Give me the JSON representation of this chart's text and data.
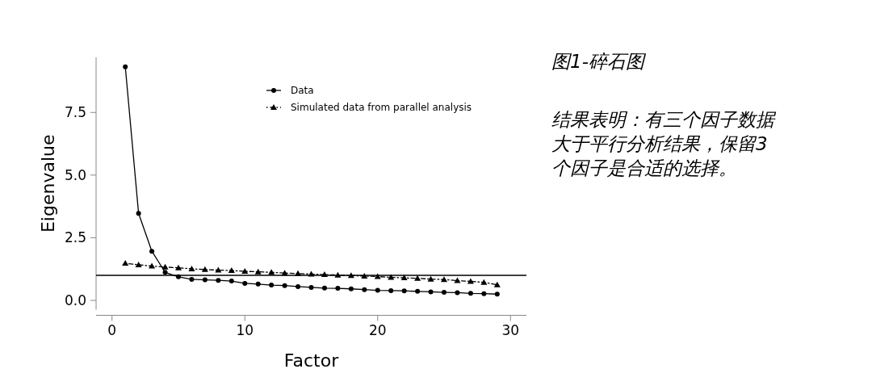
{
  "chart_data": {
    "type": "line",
    "title": "图1-碎石图",
    "xlabel": "Factor",
    "ylabel": "Eigenvalue",
    "x": [
      1,
      2,
      3,
      4,
      5,
      6,
      7,
      8,
      9,
      10,
      11,
      12,
      13,
      14,
      15,
      16,
      17,
      18,
      19,
      20,
      21,
      22,
      23,
      24,
      25,
      26,
      27,
      28,
      29
    ],
    "series": [
      {
        "name": "Data",
        "color": "#000000",
        "marker": "circle",
        "line_style": "solid",
        "values": [
          9.32,
          3.47,
          1.96,
          1.12,
          0.94,
          0.84,
          0.82,
          0.8,
          0.77,
          0.68,
          0.65,
          0.61,
          0.59,
          0.55,
          0.52,
          0.49,
          0.48,
          0.46,
          0.43,
          0.4,
          0.39,
          0.38,
          0.36,
          0.34,
          0.32,
          0.31,
          0.28,
          0.27,
          0.25
        ]
      },
      {
        "name": "Simulated data from parallel analysis",
        "color": "#000000",
        "marker": "triangle",
        "line_style": "dashdot",
        "values": [
          1.48,
          1.42,
          1.37,
          1.33,
          1.3,
          1.26,
          1.23,
          1.21,
          1.19,
          1.16,
          1.14,
          1.12,
          1.09,
          1.07,
          1.05,
          1.03,
          1.01,
          0.99,
          0.97,
          0.95,
          0.92,
          0.9,
          0.88,
          0.85,
          0.83,
          0.79,
          0.76,
          0.72,
          0.62
        ]
      }
    ],
    "xlim": [
      -1.2,
      31.2
    ],
    "xticks": [
      0,
      10,
      20,
      30
    ],
    "ylim": [
      -0.37,
      9.7
    ],
    "yticks": [
      {
        "value": 0,
        "label": "0.0"
      },
      {
        "value": 2.5,
        "label": "2.5"
      },
      {
        "value": 5,
        "label": "5.0"
      },
      {
        "value": 7.5,
        "label": "7.5"
      }
    ],
    "ref_lines": [
      {
        "axis": "y",
        "value": 1,
        "color": "#000000"
      }
    ],
    "legend": "top right",
    "grid": false,
    "annotations": [
      "结果表明：有三个因子数据大于平行分析结果，保留3个因子是合适的选择。"
    ]
  }
}
